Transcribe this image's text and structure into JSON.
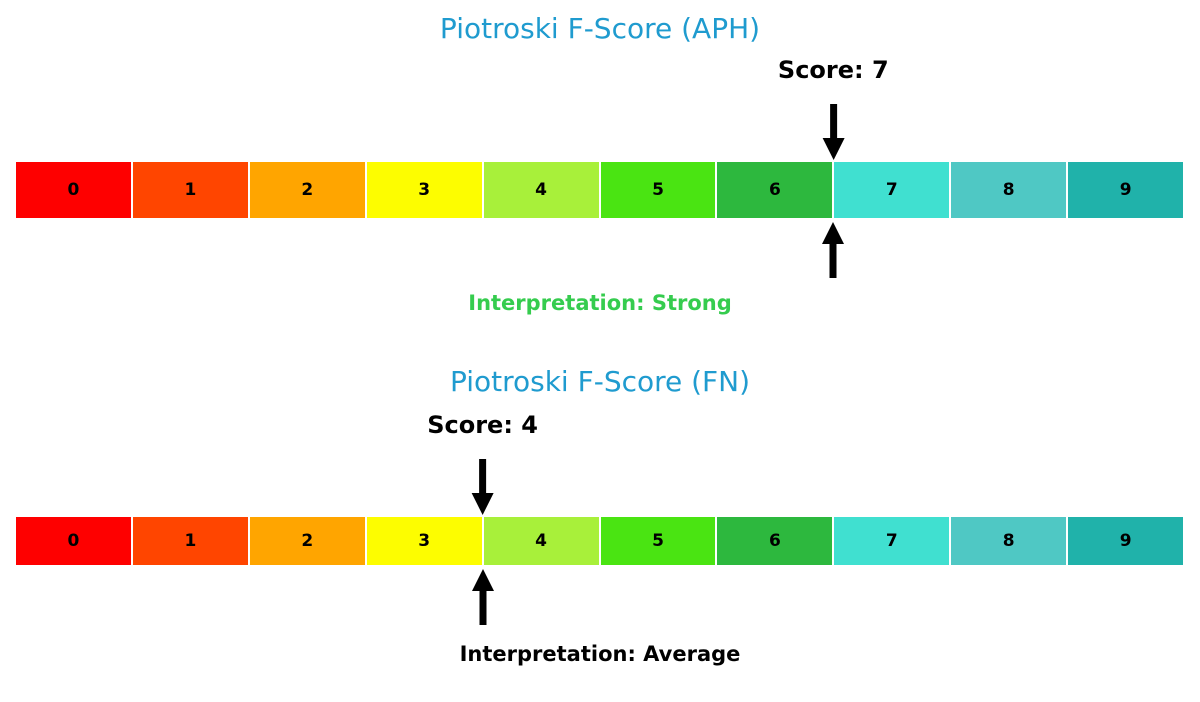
{
  "colors": {
    "background": "#ffffff",
    "title": "#1f9bcf",
    "arrow": "#000000"
  },
  "icons": {
    "down_arrow": "↓",
    "up_arrow": "↑"
  },
  "chart_data": [
    {
      "type": "bar",
      "title": "Piotroski F-Score (APH)",
      "ticker": "APH",
      "score": 7,
      "score_label": "Score: 7",
      "interpretation": "Interpretation: Strong",
      "interpretation_color": "#35cc4e",
      "categories": [
        "0",
        "1",
        "2",
        "3",
        "4",
        "5",
        "6",
        "7",
        "8",
        "9"
      ],
      "cell_colors": [
        "#fe0000",
        "#ff4500",
        "#ffa500",
        "#fdfd00",
        "#a8f03a",
        "#4ae412",
        "#2db83e",
        "#40e0d0",
        "#4fc8c4",
        "#20b2aa"
      ],
      "xlim": [
        0,
        10
      ],
      "legend": "none",
      "grid": false
    },
    {
      "type": "bar",
      "title": "Piotroski F-Score (FN)",
      "ticker": "FN",
      "score": 4,
      "score_label": "Score: 4",
      "interpretation": "Interpretation: Average",
      "interpretation_color": "#000000",
      "categories": [
        "0",
        "1",
        "2",
        "3",
        "4",
        "5",
        "6",
        "7",
        "8",
        "9"
      ],
      "cell_colors": [
        "#fe0000",
        "#ff4500",
        "#ffa500",
        "#fdfd00",
        "#a8f03a",
        "#4ae412",
        "#2db83e",
        "#40e0d0",
        "#4fc8c4",
        "#20b2aa"
      ],
      "xlim": [
        0,
        10
      ],
      "legend": "none",
      "grid": false
    }
  ]
}
